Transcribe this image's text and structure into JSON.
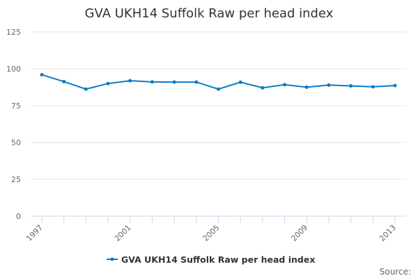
{
  "chart_data": {
    "type": "line",
    "title": "GVA UKH14 Suffolk Raw per head index",
    "xlabel": "",
    "ylabel": "",
    "x": [
      1997,
      1998,
      1999,
      2000,
      2001,
      2002,
      2003,
      2004,
      2005,
      2006,
      2007,
      2008,
      2009,
      2010,
      2011,
      2012,
      2013
    ],
    "x_tick_labels": [
      "1997",
      "2001",
      "2005",
      "2009",
      "2013"
    ],
    "y_tick_labels": [
      "0",
      "25",
      "50",
      "75",
      "100",
      "125"
    ],
    "ylim": [
      0,
      125
    ],
    "grid": true,
    "legend_position": "bottom",
    "series": [
      {
        "name": "GVA UKH14 Suffolk Raw per head index",
        "color": "#0a7bc4",
        "values": [
          96.0,
          91.3,
          86.2,
          90.0,
          91.9,
          91.1,
          91.0,
          91.0,
          86.2,
          90.9,
          87.1,
          89.2,
          87.5,
          89.0,
          88.4,
          87.8,
          88.6
        ]
      }
    ],
    "credits": "Source:"
  }
}
